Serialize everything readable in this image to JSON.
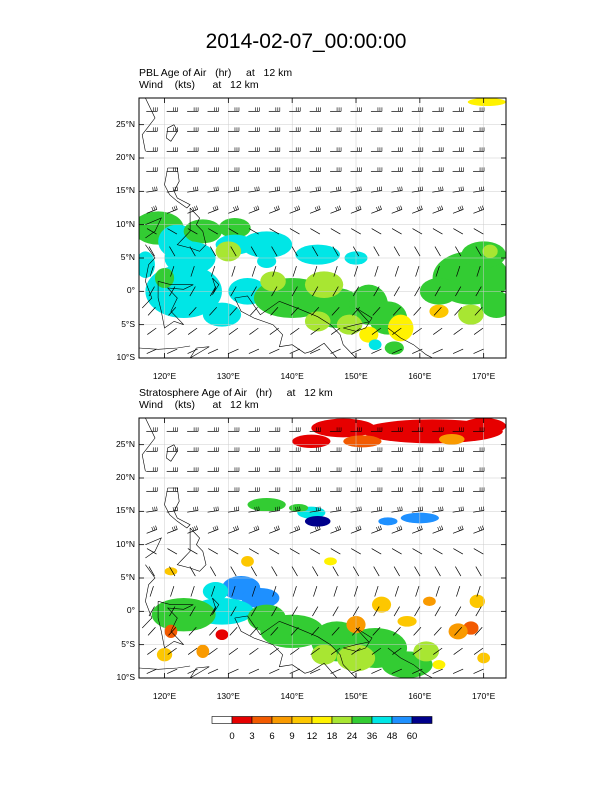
{
  "title": "2014-02-07_00:00:00",
  "panels": [
    {
      "id": "pbl",
      "line1": "PBL Age of Air   (hr)     at   12 km",
      "line2": "Wind    (kts)      at   12 km",
      "field": "PBL Age of Air",
      "units": "hr",
      "level": "12 km"
    },
    {
      "id": "strat",
      "line1": "Stratosphere Age of Air   (hr)     at   12 km",
      "line2": "Wind    (kts)      at   12 km",
      "field": "Stratosphere Age of Air",
      "units": "hr",
      "level": "12 km"
    }
  ],
  "axes": {
    "lat_labels": [
      "25°N",
      "20°N",
      "15°N",
      "10°N",
      "5°N",
      "0°",
      "5°S",
      "10°S"
    ],
    "lat_values": [
      25,
      20,
      15,
      10,
      5,
      0,
      -5,
      -10
    ],
    "lon_labels": [
      "120°E",
      "130°E",
      "140°E",
      "150°E",
      "160°E",
      "170°E"
    ],
    "lon_values": [
      120,
      130,
      140,
      150,
      160,
      170
    ],
    "lon_range": [
      116,
      173.5
    ],
    "lat_range": [
      -10,
      29
    ]
  },
  "colorbar": {
    "labels": [
      "0",
      "3",
      "6",
      "9",
      "12",
      "18",
      "24",
      "36",
      "48",
      "60"
    ],
    "colors": [
      "#ffffff",
      "#e60000",
      "#f25a00",
      "#f99a00",
      "#fdc700",
      "#fff200",
      "#a8e632",
      "#33cc33",
      "#00e6e6",
      "#1e90ff",
      "#00008b"
    ]
  },
  "map_colors": {
    "land": "#000000",
    "grid": "#cccccc",
    "barb": "#000000"
  }
}
